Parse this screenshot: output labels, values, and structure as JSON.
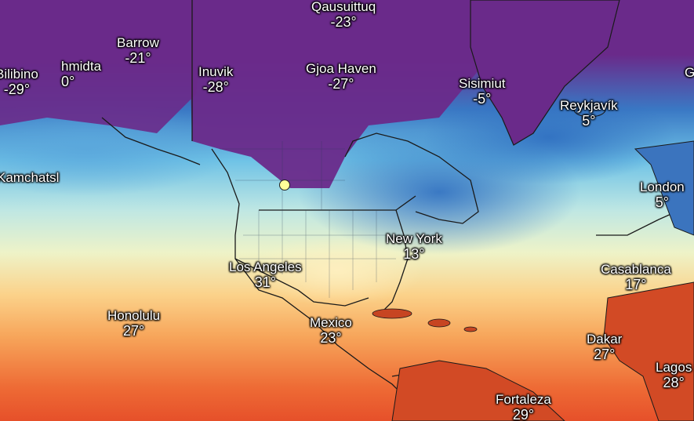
{
  "map": {
    "type": "temperature-forecast",
    "colors": {
      "frigid": "#6a2a8a",
      "cold": "#1f66b8",
      "cool": "#7fc6e4",
      "mild": "#e9f3c5",
      "warm": "#f9b35a",
      "hot": "#e8542a",
      "land_hot": "#c74522",
      "border": "#1a1a1a",
      "marker": "#ffff99"
    },
    "cities": [
      {
        "name": "Qausuittuq",
        "temp": "-23°"
      },
      {
        "name": "Barrow",
        "temp": "-21°"
      },
      {
        "name": "Bilibino",
        "temp": "-29°"
      },
      {
        "name": "hmidta",
        "temp": "0°"
      },
      {
        "name": "Inuvik",
        "temp": "-28°"
      },
      {
        "name": "Gjoa Haven",
        "temp": "-27°"
      },
      {
        "name": "Sisimiut",
        "temp": "-5°"
      },
      {
        "name": "Reykjavík",
        "temp": "5°"
      },
      {
        "name": "G",
        "temp": ""
      },
      {
        "name": "Kamchatsl",
        "temp": ""
      },
      {
        "name": "London",
        "temp": "5°"
      },
      {
        "name": "New York",
        "temp": "13°"
      },
      {
        "name": "Los Angeles",
        "temp": "31°"
      },
      {
        "name": "Casablanca",
        "temp": "17°"
      },
      {
        "name": "Honolulu",
        "temp": "27°"
      },
      {
        "name": "Mexico",
        "temp": "23°"
      },
      {
        "name": "Dakar",
        "temp": "27°"
      },
      {
        "name": "Lagos",
        "temp": "28°"
      },
      {
        "name": "Fortaleza",
        "temp": "29°"
      }
    ]
  }
}
